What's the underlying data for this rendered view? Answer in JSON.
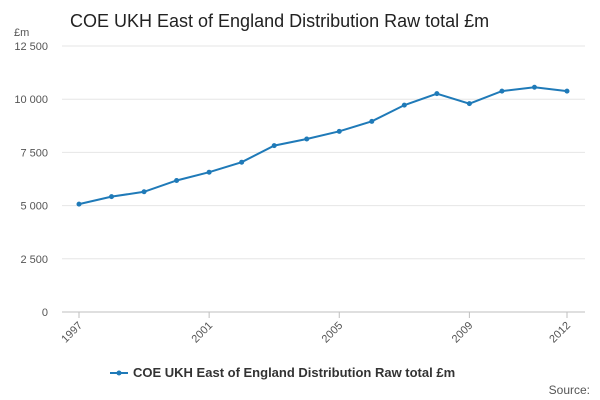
{
  "chart_data": {
    "type": "line",
    "title": "COE UKH East of England Distribution Raw total £m",
    "ylabel": "£m",
    "xlabel": "",
    "ylim": [
      0,
      12500
    ],
    "y_ticks": [
      0,
      2500,
      5000,
      7500,
      10000,
      12500
    ],
    "y_tick_labels": [
      "0",
      "2 500",
      "5 000",
      "7 500",
      "10 000",
      "12 500"
    ],
    "x_tick_labels": [
      "1997",
      "2001",
      "2005",
      "2009",
      "2012"
    ],
    "x_tick_years": [
      1997,
      2001,
      2005,
      2009,
      2012
    ],
    "grid": true,
    "legend_position": "bottom",
    "series": [
      {
        "name": "COE UKH East of England Distribution Raw total £m",
        "color": "#1f7ab8",
        "x": [
          1997,
          1998,
          1999,
          2000,
          2001,
          2002,
          2003,
          2004,
          2005,
          2006,
          2007,
          2008,
          2009,
          2010,
          2011,
          2012
        ],
        "values": [
          5070,
          5420,
          5650,
          6180,
          6570,
          7040,
          7820,
          8130,
          8490,
          8960,
          9720,
          10260,
          9790,
          10380,
          10560,
          10380
        ]
      }
    ],
    "source_label": "Source:"
  }
}
